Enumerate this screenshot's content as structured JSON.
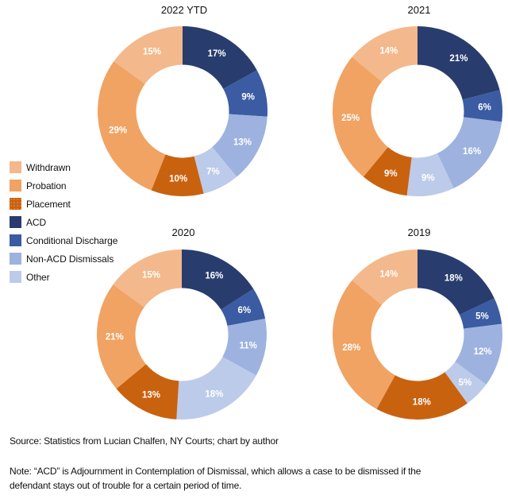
{
  "chart_data": {
    "type": "pie",
    "subtype": "donut-grid",
    "legend": {
      "placement": "left",
      "entries": [
        {
          "name": "Withdrawn",
          "color": "#F3B88B",
          "pattern": "none"
        },
        {
          "name": "Probation",
          "color": "#F0A363",
          "pattern": "none"
        },
        {
          "name": "Placement",
          "color": "#C9620F",
          "pattern": "dotted"
        },
        {
          "name": "ACD",
          "color": "#283D6E",
          "pattern": "none"
        },
        {
          "name": "Conditional Discharge",
          "color": "#3B5BA2",
          "pattern": "none"
        },
        {
          "name": "Non-ACD Dismissals",
          "color": "#9DB2DF",
          "pattern": "none"
        },
        {
          "name": "Other",
          "color": "#BDCBEA",
          "pattern": "none"
        }
      ]
    },
    "slice_order_clockwise_from_top": [
      "ACD",
      "Conditional Discharge",
      "Non-ACD Dismissals",
      "Other",
      "Placement",
      "Probation",
      "Withdrawn"
    ],
    "charts": [
      {
        "title": "2022 YTD",
        "values": {
          "ACD": 17,
          "Conditional Discharge": 9,
          "Non-ACD Dismissals": 13,
          "Other": 7,
          "Placement": 10,
          "Probation": 29,
          "Withdrawn": 15
        },
        "labels": {
          "ACD": "17%",
          "Conditional Discharge": "9%",
          "Non-ACD Dismissals": "13%",
          "Other": "7%",
          "Placement": "10%",
          "Probation": "29%",
          "Withdrawn": "15%"
        }
      },
      {
        "title": "2021",
        "values": {
          "ACD": 21,
          "Conditional Discharge": 6,
          "Non-ACD Dismissals": 16,
          "Other": 9,
          "Placement": 9,
          "Probation": 25,
          "Withdrawn": 14
        },
        "labels": {
          "ACD": "21%",
          "Conditional Discharge": "6%",
          "Non-ACD Dismissals": "16%",
          "Other": "9%",
          "Placement": "9%",
          "Probation": "25%",
          "Withdrawn": "14%"
        }
      },
      {
        "title": "2020",
        "values": {
          "ACD": 16,
          "Conditional Discharge": 6,
          "Non-ACD Dismissals": 11,
          "Other": 18,
          "Placement": 13,
          "Probation": 21,
          "Withdrawn": 15
        },
        "labels": {
          "ACD": "16%",
          "Conditional Discharge": "6%",
          "Non-ACD Dismissals": "11%",
          "Other": "18%",
          "Placement": "13%",
          "Probation": "21%",
          "Withdrawn": "15%"
        }
      },
      {
        "title": "2019",
        "values": {
          "ACD": 18,
          "Conditional Discharge": 5,
          "Non-ACD Dismissals": 12,
          "Other": 5,
          "Placement": 18,
          "Probation": 28,
          "Withdrawn": 14
        },
        "labels": {
          "ACD": "18%",
          "Conditional Discharge": "5%",
          "Non-ACD Dismissals": "12%",
          "Other": "5%",
          "Placement": "18%",
          "Probation": "28%",
          "Withdrawn": "14%"
        }
      }
    ]
  },
  "footer": {
    "source": "Source: Statistics from Lucian Chalfen, NY Courts; chart by author",
    "note": "Note: “ACD” is Adjournment in Contemplation of Dismissal, which allows a case to be dismissed if the defendant stays out of trouble for a certain period of time."
  }
}
